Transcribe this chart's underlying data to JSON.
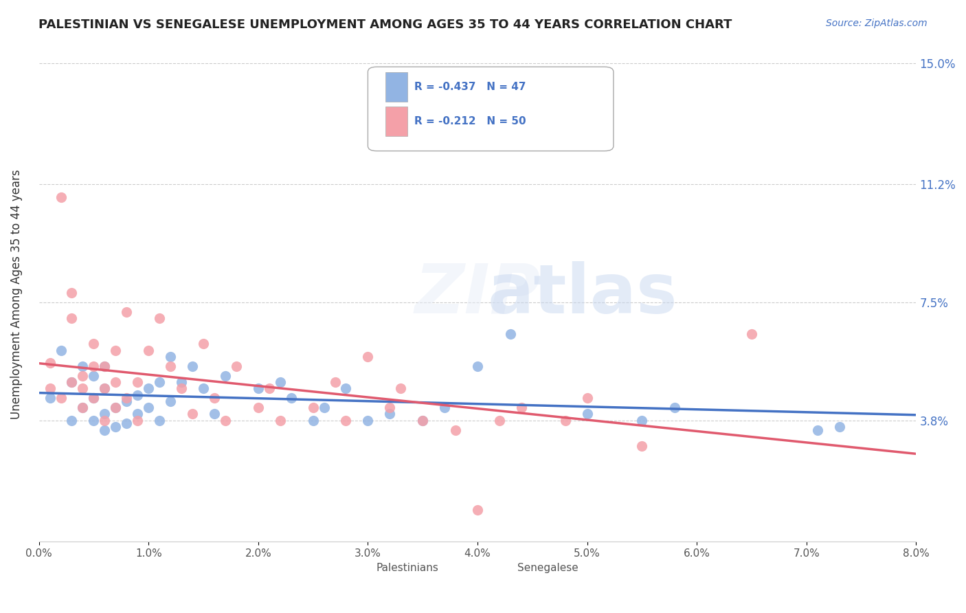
{
  "title": "PALESTINIAN VS SENEGALESE UNEMPLOYMENT AMONG AGES 35 TO 44 YEARS CORRELATION CHART",
  "source": "Source: ZipAtlas.com",
  "ylabel": "Unemployment Among Ages 35 to 44 years",
  "xlabel": "",
  "xlim": [
    0.0,
    0.08
  ],
  "ylim": [
    0.0,
    0.155
  ],
  "yticks": [
    0.038,
    0.075,
    0.112,
    0.15
  ],
  "ytick_labels": [
    "3.8%",
    "7.5%",
    "11.2%",
    "15.0%"
  ],
  "xticks": [
    0.0,
    0.01,
    0.02,
    0.03,
    0.04,
    0.05,
    0.06,
    0.07,
    0.08
  ],
  "xtick_labels": [
    "0.0%",
    "1.0%",
    "2.0%",
    "3.0%",
    "4.0%",
    "5.0%",
    "6.0%",
    "7.0%",
    "8.0%"
  ],
  "palestinian_color": "#92b4e3",
  "senegalese_color": "#f4a0a8",
  "trend_palestinian_color": "#4472c4",
  "trend_senegalese_color": "#e05a6e",
  "legend_R_palestinian": "-0.437",
  "legend_N_palestinian": "47",
  "legend_R_senegalese": "-0.212",
  "legend_N_senegalese": "50",
  "watermark": "ZIPatlas",
  "palestinians_label": "Palestinians",
  "senegalese_label": "Senegalese",
  "palestinian_x": [
    0.001,
    0.002,
    0.003,
    0.003,
    0.004,
    0.004,
    0.005,
    0.005,
    0.005,
    0.006,
    0.006,
    0.006,
    0.006,
    0.007,
    0.007,
    0.008,
    0.008,
    0.009,
    0.009,
    0.01,
    0.01,
    0.011,
    0.011,
    0.012,
    0.012,
    0.013,
    0.014,
    0.015,
    0.016,
    0.017,
    0.02,
    0.022,
    0.023,
    0.025,
    0.026,
    0.028,
    0.03,
    0.032,
    0.035,
    0.037,
    0.04,
    0.043,
    0.05,
    0.055,
    0.058,
    0.071,
    0.073
  ],
  "palestinian_y": [
    0.045,
    0.06,
    0.038,
    0.05,
    0.042,
    0.055,
    0.038,
    0.045,
    0.052,
    0.035,
    0.04,
    0.048,
    0.055,
    0.036,
    0.042,
    0.037,
    0.044,
    0.04,
    0.046,
    0.042,
    0.048,
    0.038,
    0.05,
    0.044,
    0.058,
    0.05,
    0.055,
    0.048,
    0.04,
    0.052,
    0.048,
    0.05,
    0.045,
    0.038,
    0.042,
    0.048,
    0.038,
    0.04,
    0.038,
    0.042,
    0.055,
    0.065,
    0.04,
    0.038,
    0.042,
    0.035,
    0.036
  ],
  "senegalese_x": [
    0.001,
    0.001,
    0.002,
    0.002,
    0.003,
    0.003,
    0.003,
    0.004,
    0.004,
    0.004,
    0.005,
    0.005,
    0.005,
    0.006,
    0.006,
    0.006,
    0.007,
    0.007,
    0.007,
    0.008,
    0.008,
    0.009,
    0.009,
    0.01,
    0.011,
    0.012,
    0.013,
    0.014,
    0.015,
    0.016,
    0.017,
    0.018,
    0.02,
    0.021,
    0.022,
    0.025,
    0.027,
    0.028,
    0.03,
    0.032,
    0.033,
    0.035,
    0.038,
    0.04,
    0.042,
    0.044,
    0.048,
    0.05,
    0.055,
    0.065
  ],
  "senegalese_y": [
    0.048,
    0.056,
    0.108,
    0.045,
    0.07,
    0.078,
    0.05,
    0.048,
    0.052,
    0.042,
    0.045,
    0.055,
    0.062,
    0.048,
    0.055,
    0.038,
    0.042,
    0.05,
    0.06,
    0.045,
    0.072,
    0.05,
    0.038,
    0.06,
    0.07,
    0.055,
    0.048,
    0.04,
    0.062,
    0.045,
    0.038,
    0.055,
    0.042,
    0.048,
    0.038,
    0.042,
    0.05,
    0.038,
    0.058,
    0.042,
    0.048,
    0.038,
    0.035,
    0.01,
    0.038,
    0.042,
    0.038,
    0.045,
    0.03,
    0.065
  ]
}
